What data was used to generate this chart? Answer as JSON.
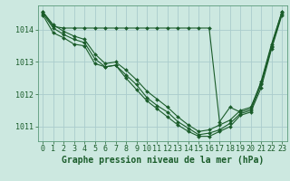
{
  "background_color": "#cce8e0",
  "grid_color": "#aacccc",
  "line_color": "#1a5c2a",
  "marker_color": "#1a5c2a",
  "xlabel": "Graphe pression niveau de la mer (hPa)",
  "xlabel_fontsize": 7,
  "tick_fontsize": 6,
  "yticks": [
    1011,
    1012,
    1013,
    1014
  ],
  "xticks": [
    0,
    1,
    2,
    3,
    4,
    5,
    6,
    7,
    8,
    9,
    10,
    11,
    12,
    13,
    14,
    15,
    16,
    17,
    18,
    19,
    20,
    21,
    22,
    23
  ],
  "xlim": [
    -0.5,
    23.5
  ],
  "ylim": [
    1010.55,
    1014.75
  ],
  "series": [
    [
      1014.55,
      1014.15,
      1013.95,
      1013.8,
      1013.7,
      1013.25,
      1012.95,
      1013.0,
      1012.75,
      1012.45,
      1012.1,
      1011.85,
      1011.6,
      1011.3,
      1011.05,
      1010.85,
      1010.9,
      1011.05,
      1011.2,
      1011.5,
      1011.6,
      1012.35,
      1013.5,
      1014.55
    ],
    [
      1014.5,
      1014.05,
      1013.85,
      1013.7,
      1013.6,
      1013.1,
      1012.85,
      1012.9,
      1012.6,
      1012.3,
      1011.9,
      1011.65,
      1011.45,
      1011.15,
      1010.95,
      1010.75,
      1010.8,
      1010.9,
      1011.1,
      1011.4,
      1011.5,
      1012.3,
      1013.45,
      1014.5
    ],
    [
      1014.45,
      1013.9,
      1013.75,
      1013.55,
      1013.5,
      1012.95,
      1012.85,
      1012.9,
      1012.5,
      1012.15,
      1011.8,
      1011.55,
      1011.3,
      1011.05,
      1010.85,
      1010.7,
      1010.7,
      1010.85,
      1011.0,
      1011.35,
      1011.45,
      1012.2,
      1013.4,
      1014.45
    ],
    [
      1014.55,
      1014.1,
      1014.05,
      1014.05,
      1014.05,
      1014.05,
      1014.05,
      1014.05,
      1014.05,
      1014.05,
      1014.05,
      1014.05,
      1014.05,
      1014.05,
      1014.05,
      1014.05,
      1014.05,
      1011.15,
      1011.6,
      1011.45,
      1011.55,
      1012.4,
      1013.55,
      1014.55
    ]
  ]
}
